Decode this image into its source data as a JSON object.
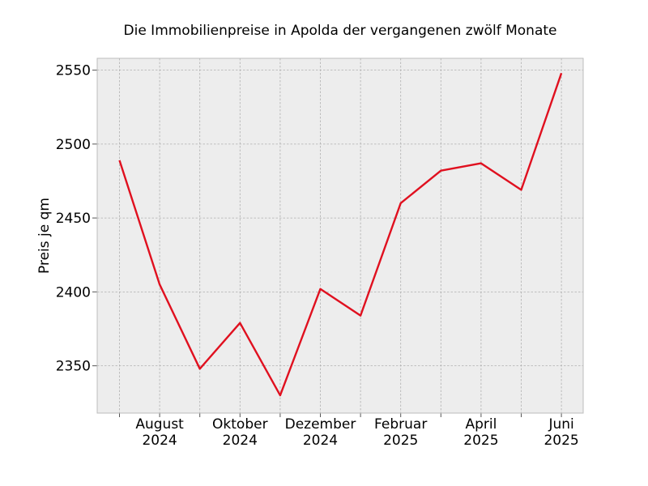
{
  "chart_data": {
    "type": "line",
    "title": "Die Immobilienpreise in Apolda der vergangenen zwölf Monate",
    "xlabel": "",
    "ylabel": "Preis je qm",
    "x": [
      "2024-07",
      "2024-08",
      "2024-09",
      "2024-10",
      "2024-11",
      "2024-12",
      "2025-01",
      "2025-02",
      "2025-03",
      "2025-04",
      "2025-05",
      "2025-06"
    ],
    "series": [
      {
        "values": [
          2489,
          2405,
          2348,
          2379,
          2330,
          2402,
          2384,
          2460,
          2482,
          2487,
          2469,
          2548
        ],
        "color": "#e0101f"
      }
    ],
    "ylim": [
      2318,
      2558
    ],
    "yticks": [
      2350,
      2400,
      2450,
      2500,
      2550
    ],
    "xtick_labels": [
      {
        "x": "2024-08",
        "line1": "August",
        "line2": "2024"
      },
      {
        "x": "2024-10",
        "line1": "Oktober",
        "line2": "2024"
      },
      {
        "x": "2024-12",
        "line1": "Dezember",
        "line2": "2024"
      },
      {
        "x": "2025-02",
        "line1": "Februar",
        "line2": "2025"
      },
      {
        "x": "2025-04",
        "line1": "April",
        "line2": "2025"
      },
      {
        "x": "2025-06",
        "line1": "Juni",
        "line2": "2025"
      }
    ],
    "grid": true,
    "background_color": "#ededed",
    "grid_color": "#b0b0b0"
  }
}
